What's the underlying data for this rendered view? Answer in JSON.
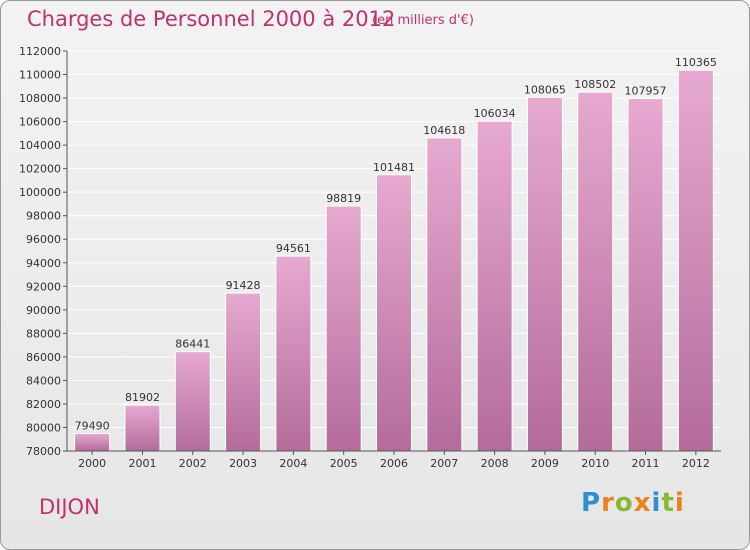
{
  "header": {
    "title": "Charges de Personnel 2000 à 2012",
    "subtitle": "(en milliers d'€)"
  },
  "footer": {
    "city": "DIJON",
    "logo_letters": [
      "P",
      "r",
      "o",
      "x",
      "i",
      "t",
      "i"
    ],
    "logo_colors": [
      "#2c8fd6",
      "#e8831b",
      "#8ab834",
      "#e8831b",
      "#2c8fd6",
      "#8ab834",
      "#e8831b"
    ]
  },
  "colors": {
    "bar_top": "#e6a9d0",
    "bar_bottom": "#b36c9a",
    "accent": "#c0306e",
    "grid": "#ffffff",
    "text": "#333333"
  },
  "chart_data": {
    "type": "bar",
    "title": "Charges de Personnel 2000 à 2012",
    "subtitle": "(en milliers d'€)",
    "categories": [
      "2000",
      "2001",
      "2002",
      "2003",
      "2004",
      "2005",
      "2006",
      "2007",
      "2008",
      "2009",
      "2010",
      "2011",
      "2012"
    ],
    "values": [
      79490,
      81902,
      86441,
      91428,
      94561,
      98819,
      101481,
      104618,
      106034,
      108065,
      108502,
      107957,
      110365
    ],
    "ylim": [
      78000,
      112000
    ],
    "yticks": [
      78000,
      80000,
      82000,
      84000,
      86000,
      88000,
      90000,
      92000,
      94000,
      96000,
      98000,
      100000,
      102000,
      104000,
      106000,
      108000,
      110000,
      112000
    ],
    "xlabel": "",
    "ylabel": "",
    "grid": true
  }
}
